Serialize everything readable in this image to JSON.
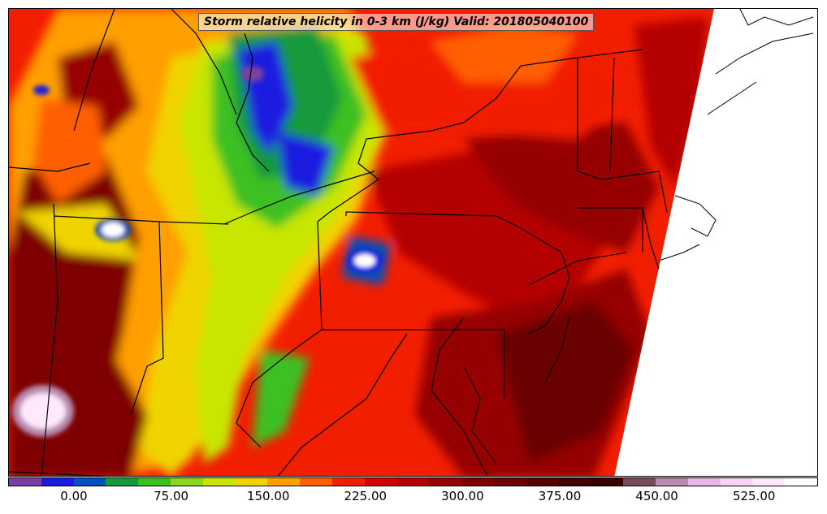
{
  "title": "Storm relative helicity in 0-3 km (J/kg) Valid: 201805040100",
  "colorbar": {
    "tick_labels": [
      "0.00",
      "75.00",
      "150.00",
      "225.00",
      "300.00",
      "375.00",
      "450.00",
      "525.00"
    ],
    "colors": [
      "#7a3fa0",
      "#1a1ae0",
      "#0050c0",
      "#149a3a",
      "#3cc020",
      "#8ad61a",
      "#c8e600",
      "#f0d400",
      "#ff9f00",
      "#ff5e00",
      "#f21e00",
      "#d40000",
      "#b40000",
      "#960000",
      "#7e0000",
      "#6a0000",
      "#560000",
      "#440000",
      "#380000",
      "#7a4a5a",
      "#b88ab0",
      "#eab8e6",
      "#f8d4f4",
      "#fde8fc",
      "#ffffff"
    ]
  },
  "palette": {
    "background_field": "#f21e00",
    "ocean_blank": "#ffffff",
    "boundaries": "#000000"
  }
}
